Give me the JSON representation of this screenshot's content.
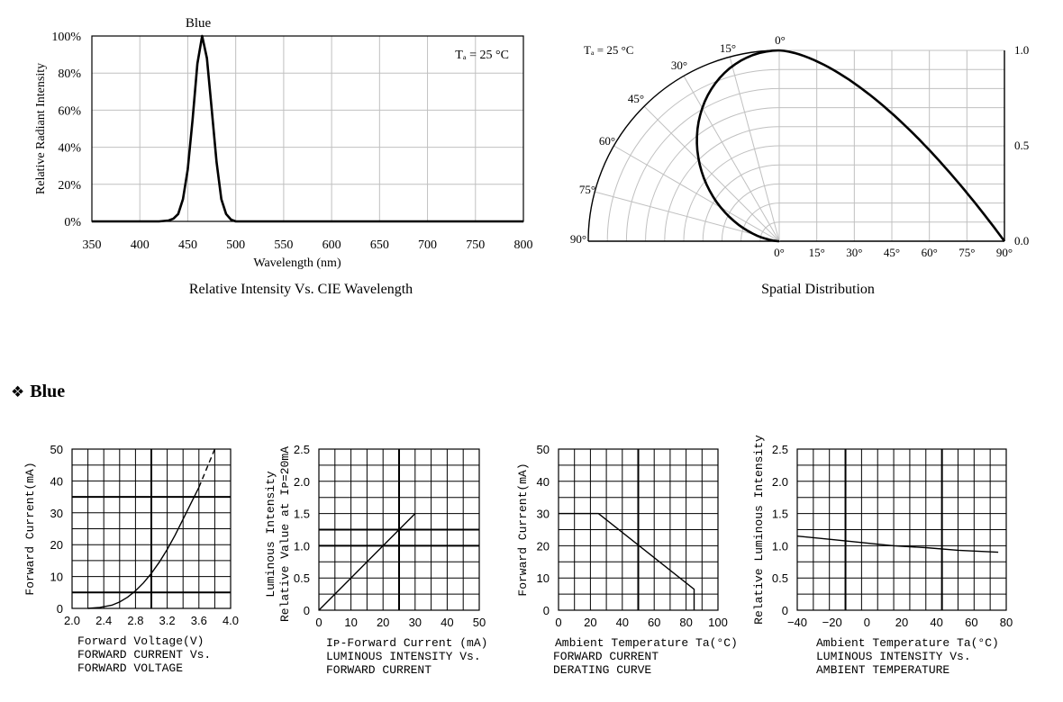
{
  "section_title": "Blue",
  "section_bullet": "❖",
  "colors": {
    "curve": "#000000",
    "grid_light": "#c0c0c0",
    "grid_dark": "#000000",
    "background": "#ffffff"
  },
  "chart_data": [
    {
      "id": "spectrum",
      "type": "line",
      "caption": "Relative Intensity Vs. CIE Wavelength",
      "series_label": "Blue",
      "condition": "Tₐ = 25 °C",
      "xlabel": "Wavelength (nm)",
      "ylabel": "Relative Radiant Intensity",
      "xlim": [
        350,
        800
      ],
      "ylim": [
        0,
        100
      ],
      "xticks": [
        "350",
        "400",
        "450",
        "500",
        "550",
        "600",
        "650",
        "700",
        "750",
        "800"
      ],
      "yticks": [
        "0%",
        "20%",
        "40%",
        "60%",
        "80%",
        "100%"
      ],
      "x": [
        350,
        420,
        430,
        435,
        440,
        445,
        450,
        455,
        460,
        465,
        470,
        475,
        480,
        485,
        490,
        495,
        500,
        510,
        800
      ],
      "y": [
        0,
        0,
        0.5,
        1.5,
        4,
        12,
        28,
        55,
        85,
        100,
        88,
        60,
        32,
        12,
        4,
        1,
        0,
        0,
        0
      ]
    },
    {
      "id": "spatial",
      "type": "line",
      "caption": "Spatial Distribution",
      "condition": "Tₐ = 25 °C",
      "angle_labels": [
        "0°",
        "15°",
        "30°",
        "45°",
        "60°",
        "75°",
        "90°"
      ],
      "x_axis_labels": [
        "0°",
        "15°",
        "30°",
        "45°",
        "60°",
        "75°",
        "90°"
      ],
      "right_axis_labels": [
        "1.0",
        "0.5",
        "0.0"
      ],
      "ylim": [
        0,
        1.0
      ],
      "angles_deg": [
        0,
        15,
        30,
        45,
        60,
        75,
        90
      ],
      "relative_intensity": [
        1.0,
        0.96,
        0.86,
        0.7,
        0.5,
        0.26,
        0.0
      ]
    },
    {
      "id": "iv",
      "type": "line",
      "title_lines": [
        "FORWARD CURRENT Vs.",
        "FORWARD VOLTAGE"
      ],
      "xlabel": "Forward Voltage(V)",
      "ylabel": "Forward Current(mA)",
      "xlim": [
        2.0,
        4.0
      ],
      "ylim": [
        0,
        50
      ],
      "xticks": [
        "2.0",
        "2.4",
        "2.8",
        "3.2",
        "3.6",
        "4.0"
      ],
      "yticks": [
        "0",
        "10",
        "20",
        "30",
        "40",
        "50"
      ],
      "x": [
        2.2,
        2.35,
        2.5,
        2.6,
        2.7,
        2.8,
        2.9,
        3.0,
        3.1,
        3.2,
        3.3,
        3.4,
        3.5,
        3.6,
        3.7,
        3.8
      ],
      "y": [
        0,
        0.3,
        1,
        2,
        3.5,
        5.5,
        8,
        11,
        14.5,
        18.5,
        23,
        28,
        33,
        38,
        44,
        50
      ],
      "dashed_from_x": 3.6
    },
    {
      "id": "lum_current",
      "type": "line",
      "title_lines": [
        "LUMINOUS INTENSITY Vs.",
        "FORWARD CURRENT"
      ],
      "xlabel": "Iᴘ-Forward Current (mA)",
      "ylabel_lines": [
        "Luminous Intensity",
        "Relative Value at Iᴘ=20mA"
      ],
      "xlim": [
        0,
        50
      ],
      "ylim": [
        0,
        2.5
      ],
      "xticks": [
        "0",
        "10",
        "20",
        "30",
        "40",
        "50"
      ],
      "yticks": [
        "0",
        "0.5",
        "1.0",
        "1.5",
        "2.0",
        "2.5"
      ],
      "x": [
        0,
        5,
        10,
        15,
        20,
        25,
        30
      ],
      "y": [
        0,
        0.25,
        0.5,
        0.75,
        1.0,
        1.25,
        1.5
      ]
    },
    {
      "id": "derating",
      "type": "line",
      "title_lines": [
        "FORWARD CURRENT",
        "DERATING CURVE"
      ],
      "xlabel": "Ambient Temperature Ta(°C)",
      "ylabel": "Forward Current(mA)",
      "xlim": [
        0,
        100
      ],
      "ylim": [
        0,
        50
      ],
      "xticks": [
        "0",
        "20",
        "40",
        "60",
        "80",
        "100"
      ],
      "yticks": [
        "0",
        "10",
        "20",
        "30",
        "40",
        "50"
      ],
      "x": [
        0,
        25,
        85,
        85
      ],
      "y": [
        30,
        30,
        6.5,
        0
      ]
    },
    {
      "id": "lum_temp",
      "type": "line",
      "title_lines": [
        "LUMINOUS INTENSITY Vs.",
        "AMBIENT TEMPERATURE"
      ],
      "xlabel": "Ambient Temperature Ta(°C)",
      "ylabel": "Relative Luminous Intensity",
      "xlim": [
        -40,
        90
      ],
      "ylim": [
        0,
        2.5
      ],
      "xticks": [
        "−40",
        "−20",
        "0",
        "20",
        "40",
        "60",
        "80"
      ],
      "yticks": [
        "0",
        "0.5",
        "1.0",
        "1.5",
        "2.0",
        "2.5"
      ],
      "x": [
        -40,
        -20,
        0,
        20,
        40,
        60,
        85
      ],
      "y": [
        1.15,
        1.1,
        1.05,
        1.0,
        0.97,
        0.93,
        0.9
      ]
    }
  ]
}
